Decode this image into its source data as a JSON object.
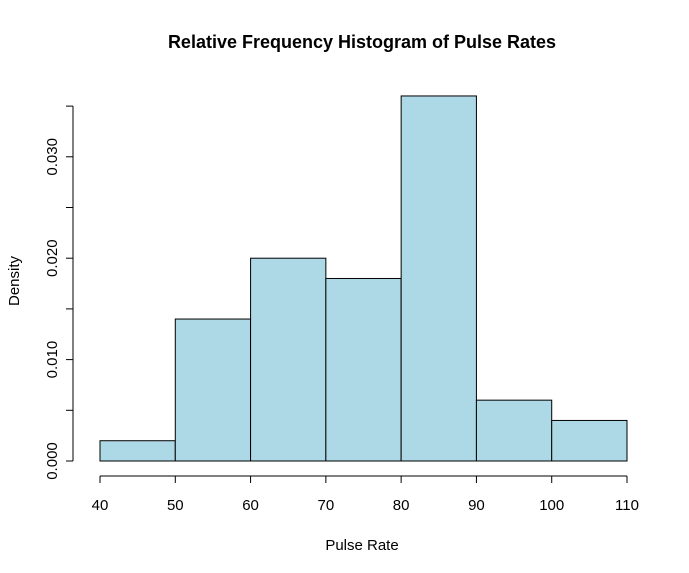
{
  "chart_data": {
    "type": "bar",
    "title": "Relative Frequency Histogram of Pulse Rates",
    "xlabel": "Pulse Rate",
    "ylabel": "Density",
    "bins": [
      {
        "start": 40,
        "end": 50,
        "density": 0.002
      },
      {
        "start": 50,
        "end": 60,
        "density": 0.014
      },
      {
        "start": 60,
        "end": 70,
        "density": 0.02
      },
      {
        "start": 70,
        "end": 80,
        "density": 0.018
      },
      {
        "start": 80,
        "end": 90,
        "density": 0.036
      },
      {
        "start": 90,
        "end": 100,
        "density": 0.006
      },
      {
        "start": 100,
        "end": 110,
        "density": 0.004
      }
    ],
    "xlim": [
      40,
      110
    ],
    "ylim": [
      0,
      0.035
    ],
    "x_ticks": [
      40,
      50,
      60,
      70,
      80,
      90,
      100,
      110
    ],
    "y_ticks": [
      "0.000",
      "0.010",
      "0.020",
      "0.030"
    ],
    "y_tick_values": [
      0.0,
      0.005,
      0.01,
      0.015,
      0.02,
      0.025,
      0.03,
      0.035
    ],
    "bar_color": "#add8e6",
    "grid": false
  }
}
